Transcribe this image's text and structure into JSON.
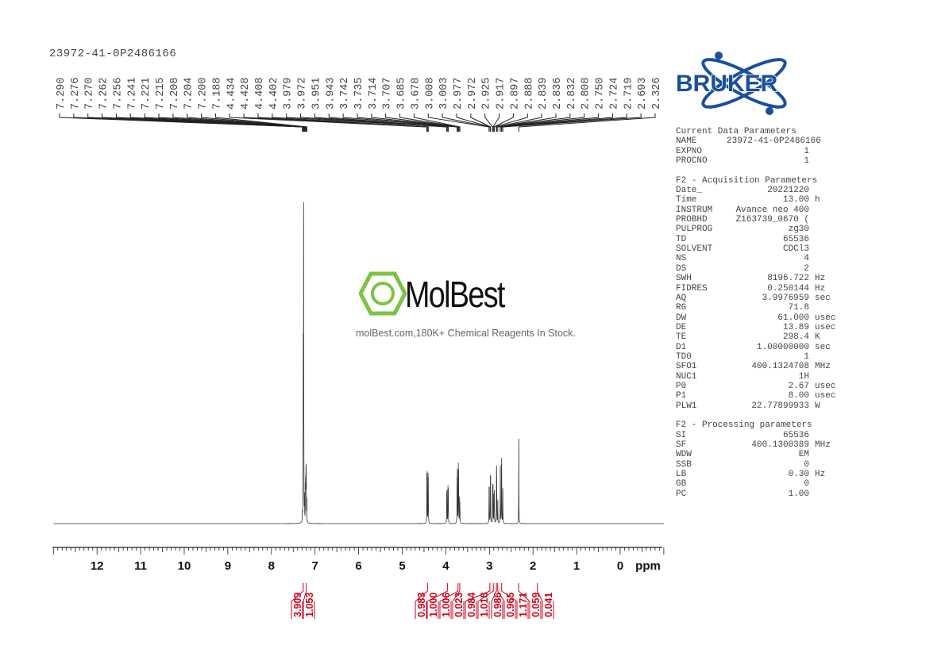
{
  "sample_title": "23972-41-0P2486166",
  "watermark": {
    "brand": "MolBest",
    "tagline": "molBest.com,180K+ Chemical Reagents In Stock.",
    "color": "#7dc242"
  },
  "bruker_logo": {
    "text": "BRUKER",
    "color": "#1a4f9c"
  },
  "parameters": {
    "sections": [
      {
        "title": "Current Data Parameters",
        "rows": [
          [
            "NAME",
            "23972-41-0P2486166",
            ""
          ],
          [
            "EXPNO",
            "1",
            ""
          ],
          [
            "PROCNO",
            "1",
            ""
          ]
        ]
      },
      {
        "title": "F2 - Acquisition Parameters",
        "rows": [
          [
            "Date_",
            "20221220",
            ""
          ],
          [
            "Time",
            "13.00",
            "h"
          ],
          [
            "INSTRUM",
            "Avance neo 400",
            ""
          ],
          [
            "PROBHD",
            "Z163739_0670 (",
            ""
          ],
          [
            "PULPROG",
            "zg30",
            ""
          ],
          [
            "TD",
            "65536",
            ""
          ],
          [
            "SOLVENT",
            "CDCl3",
            ""
          ],
          [
            "NS",
            "4",
            ""
          ],
          [
            "DS",
            "2",
            ""
          ],
          [
            "SWH",
            "8196.722",
            "Hz"
          ],
          [
            "FIDRES",
            "0.250144",
            "Hz"
          ],
          [
            "AQ",
            "3.9976959",
            "sec"
          ],
          [
            "RG",
            "71.8",
            ""
          ],
          [
            "DW",
            "61.000",
            "usec"
          ],
          [
            "DE",
            "13.89",
            "usec"
          ],
          [
            "TE",
            "298.4",
            "K"
          ],
          [
            "D1",
            "1.00000000",
            "sec"
          ],
          [
            "TD0",
            "1",
            ""
          ],
          [
            "SFO1",
            "400.1324708",
            "MHz"
          ],
          [
            "NUC1",
            "1H",
            ""
          ],
          [
            "P0",
            "2.67",
            "usec"
          ],
          [
            "P1",
            "8.00",
            "usec"
          ],
          [
            "PLW1",
            "22.77899933",
            "W"
          ]
        ]
      },
      {
        "title": "F2 - Processing parameters",
        "rows": [
          [
            "SI",
            "65536",
            ""
          ],
          [
            "SF",
            "400.1300389",
            "MHz"
          ],
          [
            "WDW",
            "EM",
            ""
          ],
          [
            "SSB",
            "0",
            ""
          ],
          [
            "LB",
            "0.30",
            "Hz"
          ],
          [
            "GB",
            "0",
            ""
          ],
          [
            "PC",
            "1.00",
            ""
          ]
        ]
      }
    ]
  },
  "chart_data": {
    "type": "line",
    "xlabel": "ppm",
    "xlim": [
      13,
      -1
    ],
    "x_ticks": [
      "12",
      "11",
      "10",
      "9",
      "8",
      "7",
      "6",
      "5",
      "4",
      "3",
      "2",
      "1",
      "0"
    ],
    "grid": false,
    "peak_labels": [
      "7.290",
      "7.276",
      "7.270",
      "7.262",
      "7.256",
      "7.241",
      "7.221",
      "7.215",
      "7.208",
      "7.204",
      "7.200",
      "7.188",
      "4.434",
      "4.428",
      "4.408",
      "4.402",
      "3.979",
      "3.972",
      "3.951",
      "3.943",
      "3.742",
      "3.735",
      "3.714",
      "3.707",
      "3.685",
      "3.678",
      "3.008",
      "3.003",
      "2.977",
      "2.972",
      "2.925",
      "2.917",
      "2.897",
      "2.888",
      "2.839",
      "2.836",
      "2.832",
      "2.808",
      "2.750",
      "2.724",
      "2.719",
      "2.693",
      "2.326"
    ],
    "peak_intensities": [
      10,
      15,
      200,
      400,
      50,
      30,
      40,
      45,
      50,
      45,
      40,
      30,
      55,
      60,
      55,
      50,
      35,
      40,
      45,
      40,
      50,
      65,
      70,
      60,
      30,
      25,
      40,
      40,
      50,
      50,
      45,
      45,
      35,
      40,
      40,
      45,
      40,
      30,
      75,
      60,
      70,
      45,
      107
    ],
    "integrals": [
      {
        "value": "3.909",
        "ppm": 7.27
      },
      {
        "value": "1.053",
        "ppm": 7.2
      },
      {
        "value": "0.983",
        "ppm": 4.42
      },
      {
        "value": "1.000",
        "ppm": 3.96
      },
      {
        "value": "1.006",
        "ppm": 3.72
      },
      {
        "value": "0.023",
        "ppm": 3.68
      },
      {
        "value": "0.984",
        "ppm": 2.99
      },
      {
        "value": "1.018",
        "ppm": 2.91
      },
      {
        "value": "0.986",
        "ppm": 2.84
      },
      {
        "value": "0.965",
        "ppm": 2.81
      },
      {
        "value": "1.171",
        "ppm": 2.72
      },
      {
        "value": "0.059",
        "ppm": 2.33
      },
      {
        "value": "0.041",
        "ppm": 1.9
      }
    ],
    "spectrum_color": "#333333",
    "integral_color": "#d0021b"
  }
}
